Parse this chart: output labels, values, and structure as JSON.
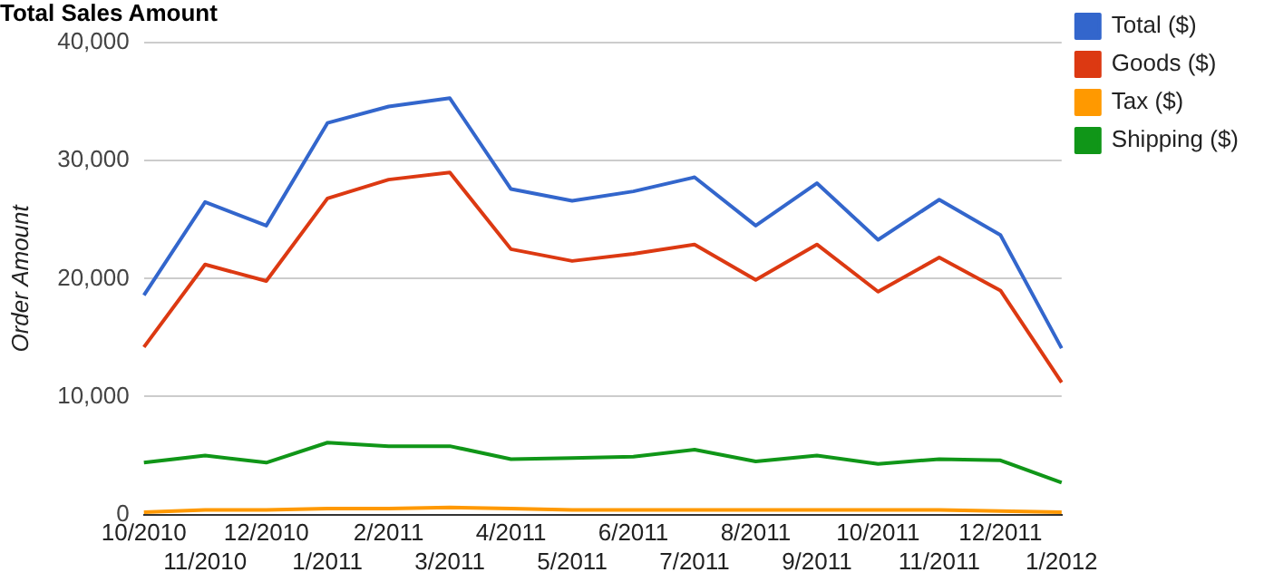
{
  "chart_data": {
    "type": "line",
    "title": "Total Sales Amount",
    "ylabel": "Order Amount",
    "categories": [
      "10/2010",
      "11/2010",
      "12/2010",
      "1/2011",
      "2/2011",
      "3/2011",
      "4/2011",
      "5/2011",
      "6/2011",
      "7/2011",
      "8/2011",
      "9/2011",
      "10/2011",
      "11/2011",
      "12/2011",
      "1/2012"
    ],
    "series": [
      {
        "name": "Total ($)",
        "color": "#3366cc",
        "values": [
          18600,
          26500,
          24500,
          33200,
          34600,
          35300,
          27600,
          26600,
          27400,
          28600,
          24500,
          28100,
          23300,
          26700,
          23700,
          14100
        ]
      },
      {
        "name": "Goods ($)",
        "color": "#dc3912",
        "values": [
          14200,
          21200,
          19800,
          26800,
          28400,
          29000,
          22500,
          21500,
          22100,
          22900,
          19900,
          22900,
          18900,
          21800,
          19000,
          11200
        ]
      },
      {
        "name": "Tax ($)",
        "color": "#ff9900",
        "values": [
          200,
          400,
          400,
          500,
          500,
          600,
          500,
          400,
          400,
          400,
          400,
          400,
          400,
          400,
          300,
          200
        ]
      },
      {
        "name": "Shipping ($)",
        "color": "#109618",
        "values": [
          4400,
          5000,
          4400,
          6100,
          5800,
          5800,
          4700,
          4800,
          4900,
          5500,
          4500,
          5000,
          4300,
          4700,
          4600,
          2700
        ]
      }
    ],
    "ylim": [
      0,
      40000
    ],
    "yticks": [
      0,
      {
        "value": 10000,
        "label": "10,000"
      },
      {
        "value": 20000,
        "label": "20,000"
      },
      {
        "value": 30000,
        "label": "30,000"
      },
      {
        "value": 40000,
        "label": "40,000"
      }
    ],
    "grid": "y",
    "legend": "right",
    "marker": "none"
  }
}
